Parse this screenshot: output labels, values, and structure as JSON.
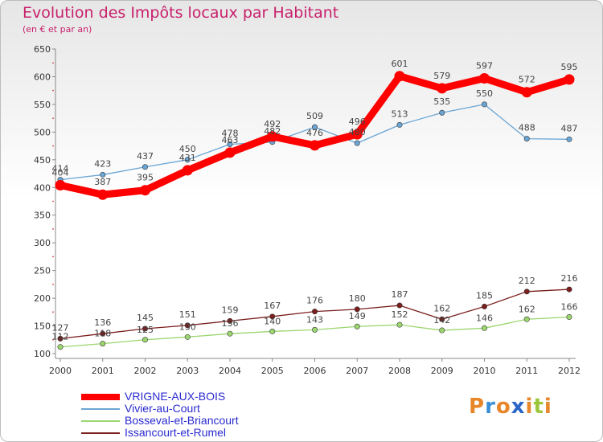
{
  "title": "Evolution des Impôts locaux par Habitant",
  "subtitle": "(en € et par an)",
  "logo": "Proxiti",
  "chart_data": {
    "type": "line",
    "x": [
      "2000",
      "2001",
      "2002",
      "2003",
      "2004",
      "2005",
      "2006",
      "2007",
      "2008",
      "2009",
      "2010",
      "2011",
      "2012"
    ],
    "ylim": [
      100,
      650
    ],
    "yticks": [
      100,
      150,
      200,
      250,
      300,
      350,
      400,
      450,
      500,
      550,
      600,
      650
    ],
    "grid": false,
    "legend": "bottom-left",
    "series": [
      {
        "name": "VRIGNE-AUX-BOIS",
        "color": "#ff0000",
        "values": [
          404,
          387,
          395,
          431,
          463,
          492,
          476,
          496,
          601,
          579,
          597,
          572,
          595
        ]
      },
      {
        "name": "Vivier-au-Court",
        "color": "#6aa5d4",
        "values": [
          414,
          423,
          437,
          450,
          478,
          482,
          509,
          480,
          513,
          535,
          550,
          488,
          487
        ]
      },
      {
        "name": "Bosseval-et-Briancourt",
        "color": "#9bd66e",
        "values": [
          112,
          118,
          125,
          130,
          136,
          140,
          143,
          149,
          152,
          142,
          146,
          162,
          166
        ]
      },
      {
        "name": "Issancourt-et-Rumel",
        "color": "#7a1d1d",
        "values": [
          127,
          136,
          145,
          151,
          159,
          167,
          176,
          180,
          187,
          162,
          185,
          212,
          216
        ]
      }
    ]
  }
}
